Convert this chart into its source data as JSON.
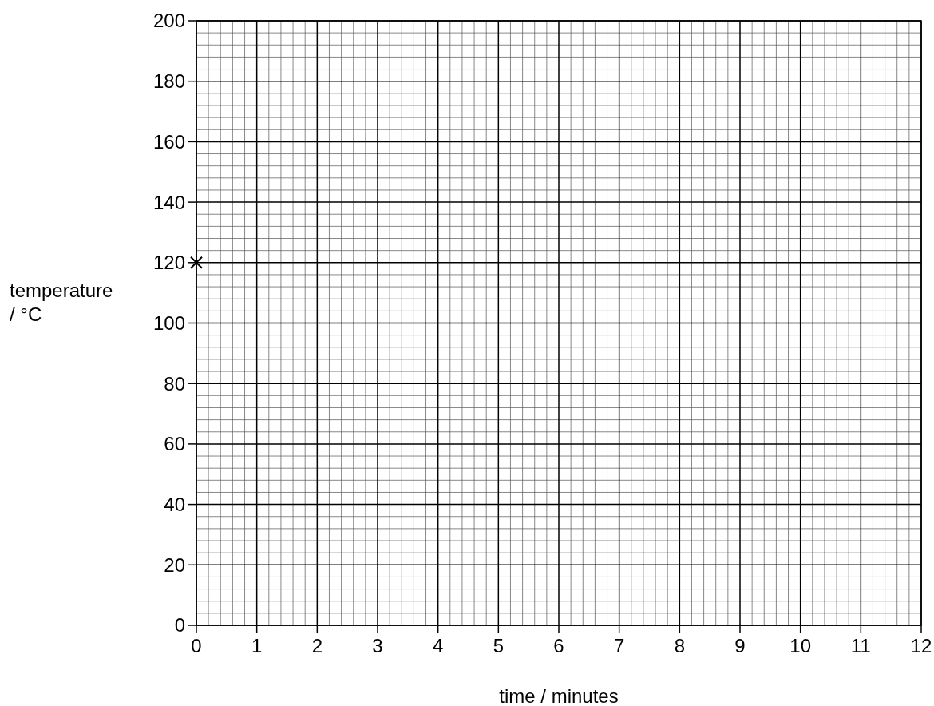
{
  "chart_data": {
    "type": "scatter",
    "xlabel": "time / minutes",
    "ylabel": "temperature\n/ °C",
    "x": [
      0
    ],
    "values": [
      120
    ],
    "color": "#000000",
    "marker": "cross",
    "xlim": [
      0,
      12
    ],
    "xticks": [
      0,
      1,
      2,
      3,
      4,
      5,
      6,
      7,
      8,
      9,
      10,
      11,
      12
    ],
    "ylim": [
      0,
      200
    ],
    "yticks": [
      0,
      20,
      40,
      60,
      80,
      100,
      120,
      140,
      160,
      180,
      200
    ],
    "grid": true
  }
}
